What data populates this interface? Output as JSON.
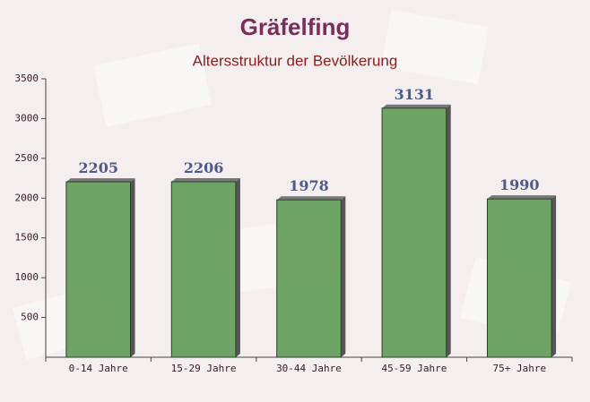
{
  "chart_data": {
    "type": "bar",
    "title": "Gräfelfing",
    "subtitle": "Altersstruktur der Bevölkerung",
    "categories": [
      "0-14 Jahre",
      "15-29 Jahre",
      "30-44 Jahre",
      "45-59 Jahre",
      "75+ Jahre"
    ],
    "values": [
      2205,
      2206,
      1978,
      3131,
      1990
    ],
    "color": "#5f9a56",
    "ylim": [
      0,
      3500
    ],
    "yticks": [
      500,
      1000,
      1500,
      2000,
      2500,
      3000,
      3500
    ]
  }
}
